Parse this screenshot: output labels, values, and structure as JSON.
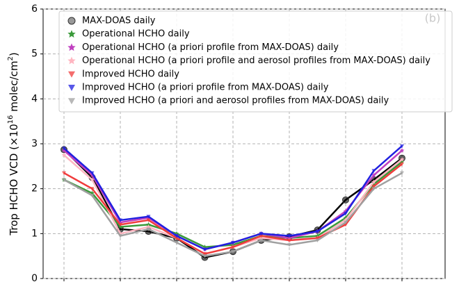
{
  "chart_data": {
    "type": "line",
    "label": "(b)",
    "ylabel": [
      "Trop HCHO VCD (×10",
      "16",
      " molec/cm",
      "2",
      ")"
    ],
    "categories": [
      null,
      null,
      null,
      null,
      null,
      null,
      null,
      null,
      null,
      null,
      null,
      null,
      null
    ],
    "ylim": [
      0,
      6
    ],
    "yticks": [
      0,
      1,
      2,
      3,
      4,
      5,
      6
    ],
    "grid": true,
    "legend": "upper right",
    "series": [
      {
        "name": "MAX-DOAS daily",
        "color": "#000000",
        "marker": "circle",
        "values": [
          2.87,
          2.25,
          1.1,
          1.05,
          0.9,
          0.47,
          0.6,
          0.85,
          0.93,
          1.08,
          1.75,
          2.2,
          2.68
        ]
      },
      {
        "name": "Operational HCHO daily",
        "color": "#3a9a3a",
        "marker": "star",
        "values": [
          2.2,
          1.9,
          1.15,
          1.2,
          1.0,
          0.7,
          0.75,
          0.95,
          0.9,
          0.95,
          1.35,
          2.1,
          2.6
        ]
      },
      {
        "name": "Operational HCHO (a priori profile from MAX-DOAS) daily",
        "color": "#c040c0",
        "marker": "star",
        "values": [
          2.85,
          2.3,
          1.25,
          1.35,
          0.95,
          0.65,
          0.8,
          1.0,
          0.9,
          1.05,
          1.5,
          2.3,
          2.85
        ]
      },
      {
        "name": "Operational HCHO (a priori profile and aerosol profiles from MAX-DOAS) daily",
        "color": "#ffb6c1",
        "marker": "star",
        "values": [
          2.75,
          2.2,
          1.0,
          1.15,
          0.9,
          0.55,
          0.7,
          0.9,
          0.85,
          0.9,
          1.3,
          2.15,
          2.65
        ]
      },
      {
        "name": "Improved HCHO daily",
        "color": "#f03c3c",
        "marker": "triangle",
        "values": [
          2.35,
          2.0,
          1.2,
          1.3,
          0.9,
          0.55,
          0.7,
          0.95,
          0.85,
          0.9,
          1.2,
          2.05,
          2.55
        ]
      },
      {
        "name": "Improved HCHO (a priori profile from MAX-DOAS) daily",
        "color": "#2020e0",
        "marker": "triangle",
        "values": [
          2.9,
          2.35,
          1.3,
          1.38,
          0.95,
          0.65,
          0.8,
          1.0,
          0.95,
          1.05,
          1.45,
          2.4,
          2.95
        ]
      },
      {
        "name": "Improved HCHO (a priori and aerosol profiles from MAX-DOAS) daily",
        "color": "#a0a0a0",
        "marker": "triangle",
        "values": [
          2.2,
          1.85,
          0.95,
          1.1,
          0.8,
          0.5,
          0.6,
          0.85,
          0.75,
          0.85,
          1.25,
          2.0,
          2.35
        ]
      }
    ]
  }
}
